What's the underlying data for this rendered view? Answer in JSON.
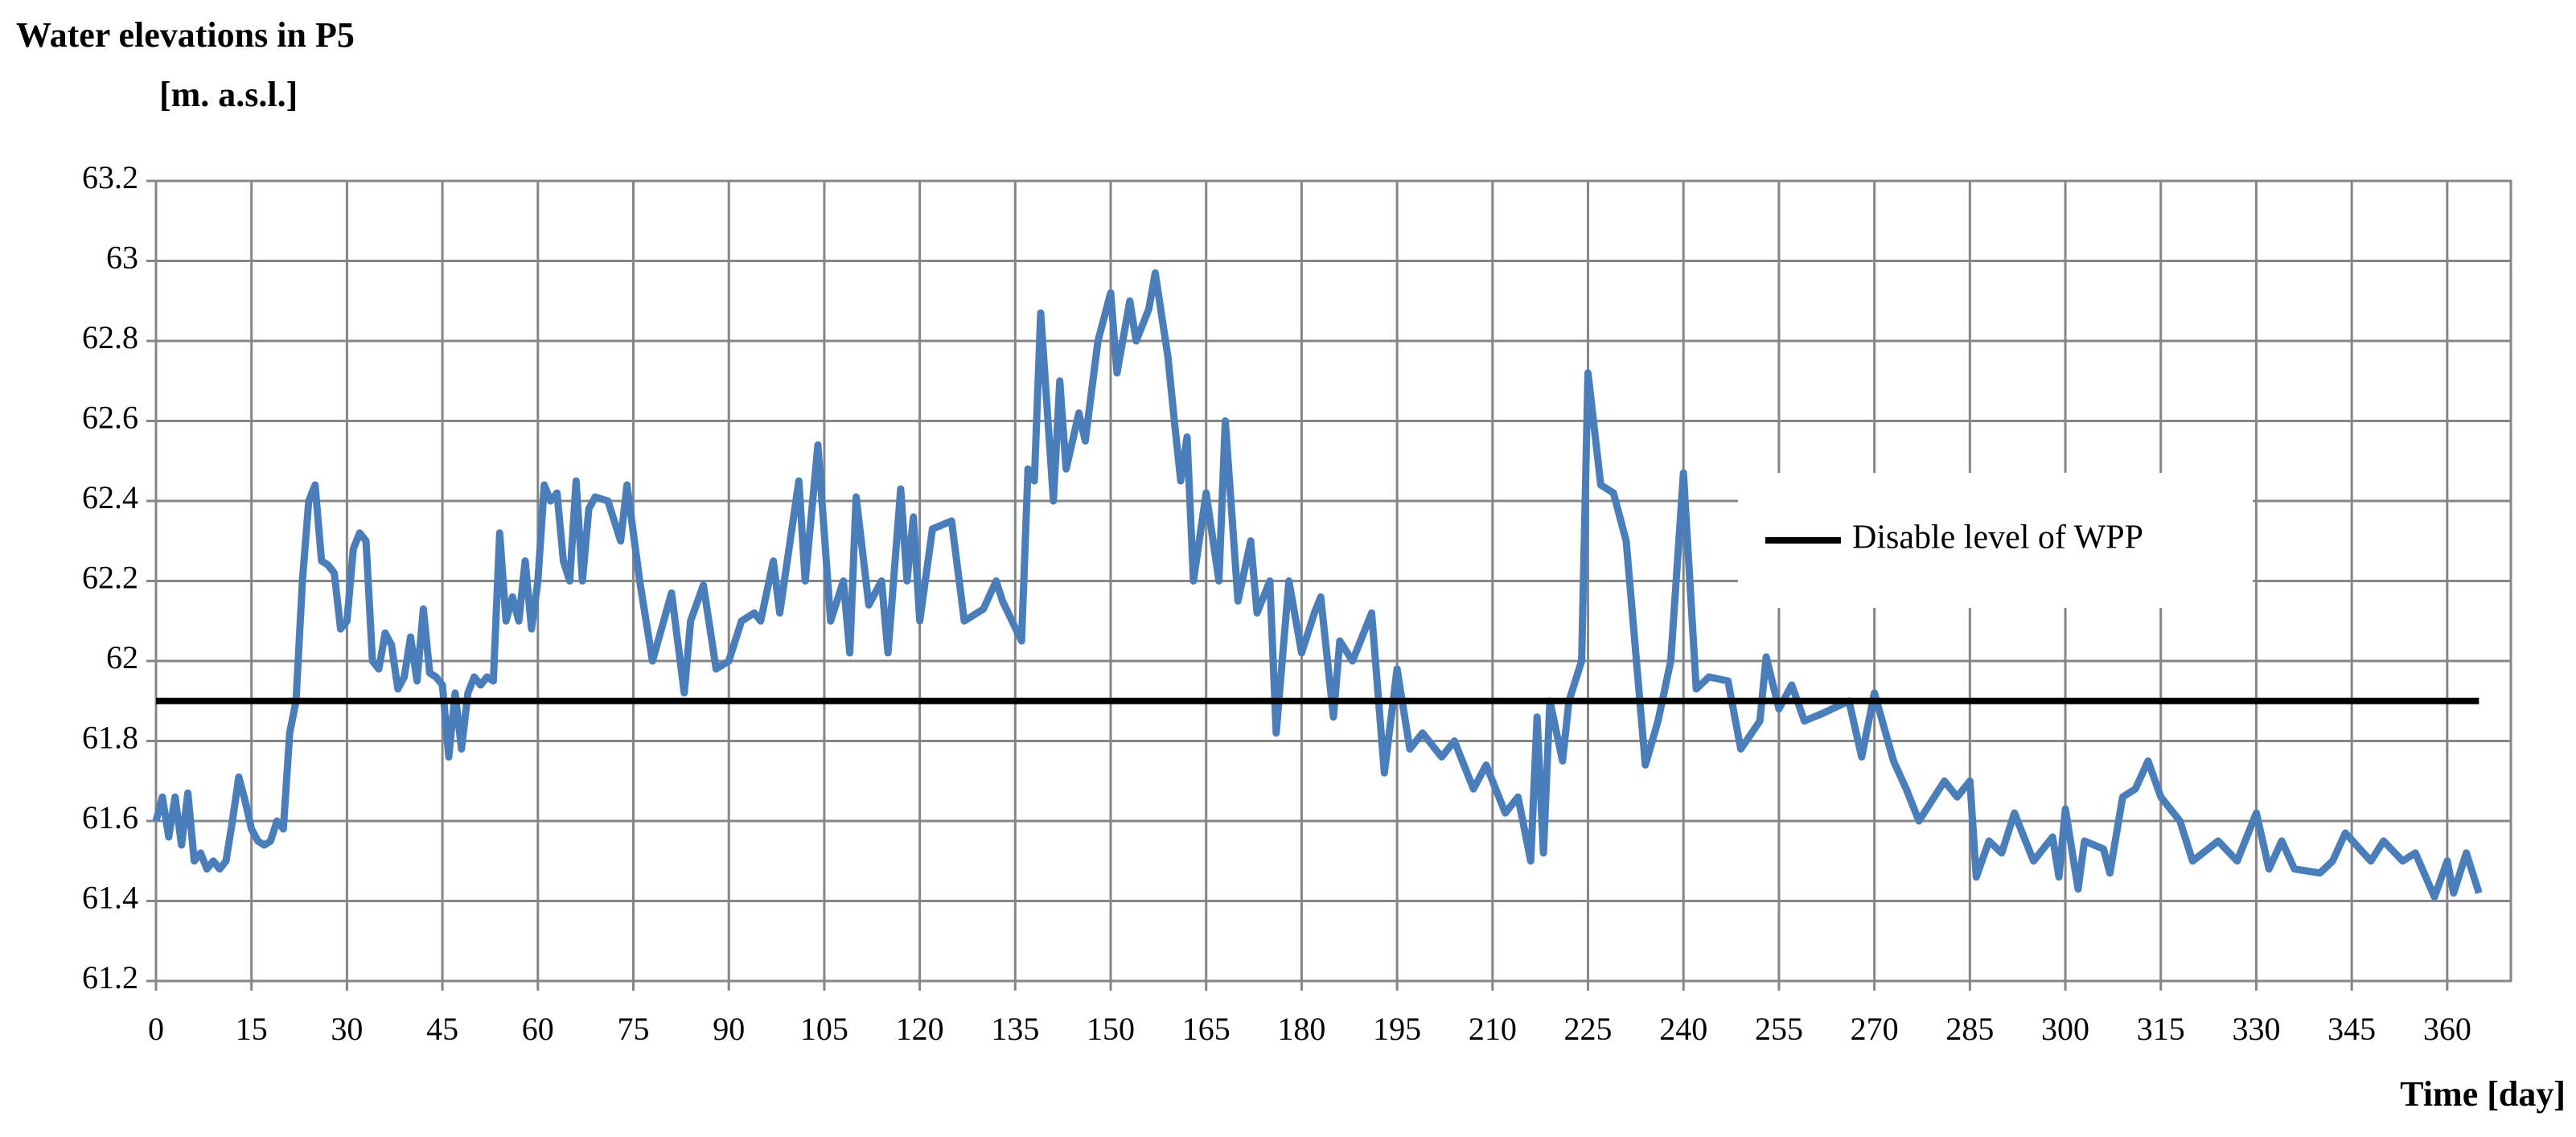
{
  "chart_data": {
    "type": "line",
    "title": "Water elevations in P5",
    "y_axis_label": "[m. a.s.l.]",
    "x_axis_label": "Time [day]",
    "xlim": [
      0,
      370
    ],
    "xticks": [
      0,
      15,
      30,
      45,
      60,
      75,
      90,
      105,
      120,
      135,
      150,
      165,
      180,
      195,
      210,
      225,
      240,
      255,
      270,
      285,
      300,
      315,
      330,
      345,
      360
    ],
    "ylim": [
      61.2,
      63.2
    ],
    "yticks": [
      61.2,
      61.4,
      61.6,
      61.8,
      62,
      62.2,
      62.4,
      62.6,
      62.8,
      63,
      63.2
    ],
    "grid": true,
    "series": [
      {
        "color": "#4a7ebb",
        "x": [
          0,
          1,
          2,
          3,
          4,
          5,
          6,
          7,
          8,
          9,
          10,
          11,
          12,
          13,
          14,
          15,
          16,
          17,
          18,
          19,
          20,
          21,
          22,
          23,
          24,
          25,
          26,
          27,
          28,
          29,
          30,
          31,
          32,
          33,
          34,
          35,
          36,
          37,
          38,
          39,
          40,
          41,
          42,
          43,
          44,
          45,
          46,
          47,
          48,
          49,
          50,
          51,
          52,
          53,
          54,
          55,
          56,
          57,
          58,
          59,
          60,
          61,
          62,
          63,
          64,
          65,
          66,
          67,
          68,
          69,
          71,
          73,
          74,
          76,
          78,
          81,
          83,
          84,
          86,
          88,
          90,
          92,
          94,
          95,
          97,
          98,
          101,
          102,
          104,
          106,
          108,
          109,
          110,
          112,
          114,
          115,
          117,
          118,
          119,
          120,
          122,
          125,
          127,
          130,
          132,
          133,
          136,
          137,
          138,
          139,
          141,
          142,
          143,
          145,
          146,
          148,
          150,
          151,
          153,
          154,
          156,
          157,
          159,
          160,
          161,
          162,
          163,
          165,
          167,
          168,
          170,
          172,
          173,
          175,
          176,
          178,
          180,
          182,
          183,
          185,
          186,
          188,
          191,
          193,
          195,
          197,
          199,
          202,
          204,
          207,
          209,
          212,
          214,
          216,
          217,
          218,
          219,
          221,
          222,
          224,
          225,
          227,
          229,
          231,
          234,
          236,
          238,
          240,
          242,
          244,
          247,
          249,
          252,
          253,
          255,
          257,
          259,
          262,
          266,
          268,
          270,
          273,
          275,
          277,
          281,
          283,
          285,
          286,
          288,
          290,
          292,
          295,
          298,
          299,
          300,
          302,
          303,
          306,
          307,
          309,
          311,
          313,
          315,
          318,
          320,
          324,
          327,
          330,
          332,
          334,
          336,
          340,
          342,
          344,
          348,
          350,
          353,
          355,
          358,
          360,
          361,
          363,
          365
        ],
        "values": [
          61.6,
          61.66,
          61.56,
          61.66,
          61.54,
          61.67,
          61.5,
          61.52,
          61.48,
          61.5,
          61.48,
          61.5,
          61.6,
          61.71,
          61.65,
          61.58,
          61.55,
          61.54,
          61.55,
          61.6,
          61.58,
          61.82,
          61.9,
          62.2,
          62.4,
          62.44,
          62.25,
          62.24,
          62.22,
          62.08,
          62.1,
          62.28,
          62.32,
          62.3,
          62.0,
          61.98,
          62.07,
          62.04,
          61.93,
          61.96,
          62.06,
          61.95,
          62.13,
          61.97,
          61.96,
          61.94,
          61.76,
          61.92,
          61.78,
          61.92,
          61.96,
          61.94,
          61.96,
          61.95,
          62.32,
          62.1,
          62.16,
          62.1,
          62.25,
          62.08,
          62.2,
          62.44,
          62.4,
          62.42,
          62.25,
          62.2,
          62.45,
          62.2,
          62.38,
          62.41,
          62.4,
          62.3,
          62.44,
          62.2,
          62.0,
          62.17,
          61.92,
          62.1,
          62.19,
          61.98,
          62.0,
          62.1,
          62.12,
          62.1,
          62.25,
          62.12,
          62.45,
          62.2,
          62.54,
          62.1,
          62.2,
          62.02,
          62.41,
          62.14,
          62.2,
          62.02,
          62.43,
          62.2,
          62.36,
          62.1,
          62.33,
          62.35,
          62.1,
          62.13,
          62.2,
          62.15,
          62.05,
          62.48,
          62.45,
          62.87,
          62.4,
          62.7,
          62.48,
          62.62,
          62.55,
          62.8,
          62.92,
          62.72,
          62.9,
          62.8,
          62.88,
          62.97,
          62.76,
          62.6,
          62.45,
          62.56,
          62.2,
          62.42,
          62.2,
          62.6,
          62.15,
          62.3,
          62.12,
          62.2,
          61.82,
          62.2,
          62.02,
          62.12,
          62.16,
          61.86,
          62.05,
          62.0,
          62.12,
          61.72,
          61.98,
          61.78,
          61.82,
          61.76,
          61.8,
          61.68,
          61.74,
          61.62,
          61.66,
          61.5,
          61.86,
          61.52,
          61.9,
          61.75,
          61.9,
          62.0,
          62.72,
          62.44,
          62.42,
          62.3,
          61.74,
          61.85,
          62.0,
          62.47,
          61.93,
          61.96,
          61.95,
          61.78,
          61.85,
          62.01,
          61.88,
          61.94,
          61.85,
          61.87,
          61.9,
          61.76,
          61.92,
          61.75,
          61.68,
          61.6,
          61.7,
          61.66,
          61.7,
          61.46,
          61.55,
          61.52,
          61.62,
          61.5,
          61.56,
          61.46,
          61.63,
          61.43,
          61.55,
          61.53,
          61.47,
          61.66,
          61.68,
          61.75,
          61.66,
          61.6,
          61.5,
          61.55,
          61.5,
          61.62,
          61.48,
          61.55,
          61.48,
          61.47,
          61.5,
          61.57,
          61.5,
          61.55,
          61.5,
          61.52,
          61.41,
          61.5,
          61.42,
          61.52,
          61.42
        ]
      },
      {
        "name": "Disable level of WPP",
        "color": "#000000",
        "x": [
          0,
          365
        ],
        "values": [
          61.9,
          61.9
        ]
      }
    ]
  }
}
